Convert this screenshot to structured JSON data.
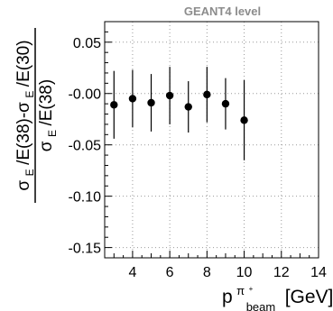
{
  "chart_data": {
    "type": "scatter",
    "title": "GEANT4 level",
    "xlim": [
      2.5,
      14
    ],
    "ylim": [
      -0.16,
      0.07
    ],
    "grid": true,
    "x_ticks": [
      4,
      6,
      8,
      10,
      12,
      14
    ],
    "x_tick_labels": [
      "4",
      "6",
      "8",
      "10",
      "12",
      "14"
    ],
    "y_ticks": [
      0.05,
      0.0,
      -0.05,
      -0.1,
      -0.15
    ],
    "y_tick_labels": [
      "0.05",
      "-0.00",
      "-0.05",
      "-0.10",
      "-0.15"
    ],
    "xlabel": {
      "base": "p",
      "superscript": "π",
      "superscript2": "+",
      "subscript": "beam",
      "unit": "[GeV]"
    },
    "ylabel": {
      "numerator": [
        "σ",
        "E",
        "/E(38)-σ",
        "E",
        "/E(30)"
      ],
      "denominator": [
        "σ",
        "E",
        "/E(38)"
      ]
    },
    "series": [
      {
        "marker": "filled-circle",
        "color": "#000000",
        "points": [
          {
            "x": 3,
            "y": -0.011,
            "err": 0.033
          },
          {
            "x": 4,
            "y": -0.005,
            "err": 0.028
          },
          {
            "x": 5,
            "y": -0.009,
            "err": 0.028
          },
          {
            "x": 6,
            "y": -0.002,
            "err": 0.028
          },
          {
            "x": 7,
            "y": -0.013,
            "err": 0.025
          },
          {
            "x": 8,
            "y": -0.001,
            "err": 0.027
          },
          {
            "x": 9,
            "y": -0.01,
            "err": 0.025
          },
          {
            "x": 10,
            "y": -0.026,
            "err": 0.039
          }
        ]
      }
    ]
  }
}
